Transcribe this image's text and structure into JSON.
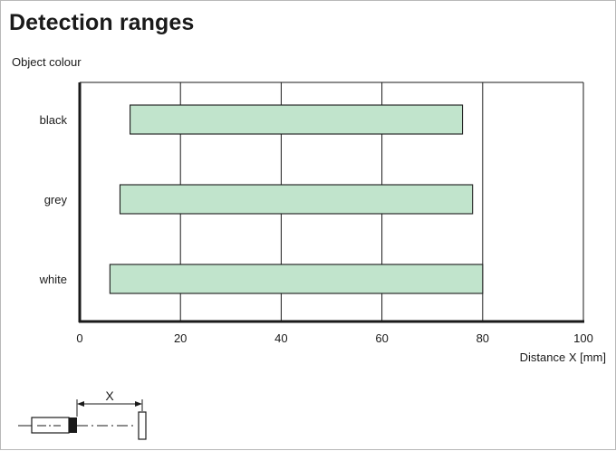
{
  "chart_data": {
    "type": "bar",
    "orientation": "horizontal",
    "title": "Detection ranges",
    "ylabel": "Object colour",
    "xlabel": "Distance X [mm]",
    "xlim": [
      0,
      100
    ],
    "xticks": [
      0,
      20,
      40,
      60,
      80,
      100
    ],
    "grid": true,
    "categories": [
      "black",
      "grey",
      "white"
    ],
    "series": [
      {
        "ranges": [
          [
            10,
            76
          ],
          [
            8,
            78
          ],
          [
            6,
            80
          ]
        ]
      }
    ],
    "bar_color": "#c1e4cc"
  },
  "diagram": {
    "dimension_label": "X"
  }
}
